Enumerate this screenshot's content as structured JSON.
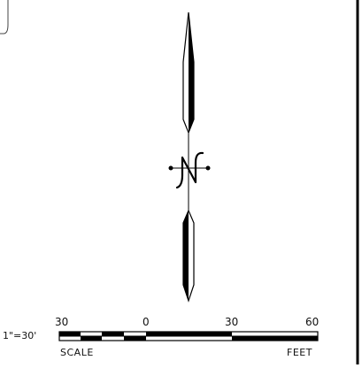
{
  "scale": {
    "ratio_label": "1\"=30'",
    "caption_left": "SCALE",
    "caption_right": "FEET",
    "ticks": [
      "30",
      "0",
      "30",
      "60"
    ]
  },
  "north_arrow": {
    "letter": "N"
  }
}
